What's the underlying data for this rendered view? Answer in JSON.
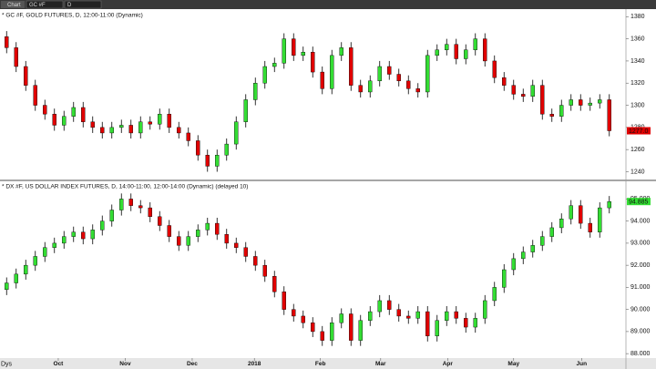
{
  "toolbar": {
    "items": [
      "Chart",
      "GC #F",
      "D"
    ]
  },
  "chart_data": [
    {
      "type": "candlestick",
      "title": "* GC #F, GOLD FUTURES, D, 12:00-11:00 (Dynamic)",
      "up_color": "#33dd33",
      "down_color": "#e00000",
      "ylim": [
        1233,
        1386
      ],
      "yticks": [
        1380,
        1360,
        1340,
        1320,
        1300,
        1280,
        1260,
        1240
      ],
      "last_price_label": "1277.0",
      "open": [
        1362,
        1352,
        1335,
        1318,
        1300,
        1292,
        1282,
        1290,
        1298,
        1285,
        1280,
        1275,
        1280,
        1282,
        1275,
        1285,
        1283,
        1292,
        1280,
        1275,
        1268,
        1255,
        1245,
        1255,
        1265,
        1285,
        1305,
        1320,
        1335,
        1338,
        1360,
        1345,
        1348,
        1330,
        1315,
        1345,
        1352,
        1318,
        1312,
        1322,
        1335,
        1328,
        1322,
        1315,
        1312,
        1345,
        1350,
        1355,
        1342,
        1350,
        1360,
        1340,
        1325,
        1318,
        1310,
        1308,
        1318,
        1292,
        1290,
        1300,
        1305,
        1300,
        1302,
        1305
      ],
      "high": [
        1367,
        1357,
        1340,
        1323,
        1305,
        1297,
        1295,
        1303,
        1303,
        1290,
        1285,
        1285,
        1287,
        1287,
        1290,
        1290,
        1297,
        1297,
        1285,
        1280,
        1273,
        1260,
        1260,
        1270,
        1290,
        1310,
        1325,
        1340,
        1343,
        1365,
        1365,
        1353,
        1353,
        1335,
        1350,
        1357,
        1357,
        1323,
        1327,
        1340,
        1340,
        1333,
        1327,
        1320,
        1350,
        1355,
        1360,
        1360,
        1355,
        1365,
        1365,
        1345,
        1330,
        1323,
        1315,
        1323,
        1323,
        1297,
        1305,
        1310,
        1310,
        1307,
        1310,
        1310
      ],
      "low": [
        1347,
        1330,
        1313,
        1295,
        1287,
        1277,
        1277,
        1285,
        1280,
        1275,
        1270,
        1270,
        1275,
        1270,
        1270,
        1278,
        1278,
        1275,
        1270,
        1263,
        1250,
        1240,
        1240,
        1250,
        1260,
        1280,
        1300,
        1315,
        1330,
        1333,
        1340,
        1340,
        1325,
        1310,
        1310,
        1340,
        1313,
        1307,
        1307,
        1317,
        1323,
        1317,
        1310,
        1307,
        1307,
        1340,
        1345,
        1337,
        1337,
        1345,
        1335,
        1320,
        1313,
        1305,
        1303,
        1303,
        1287,
        1285,
        1285,
        1295,
        1295,
        1295,
        1297,
        1272
      ],
      "close": [
        1352,
        1335,
        1318,
        1300,
        1292,
        1282,
        1290,
        1298,
        1285,
        1280,
        1275,
        1280,
        1282,
        1275,
        1285,
        1283,
        1292,
        1280,
        1275,
        1268,
        1255,
        1245,
        1255,
        1265,
        1285,
        1305,
        1320,
        1335,
        1338,
        1360,
        1345,
        1348,
        1330,
        1315,
        1345,
        1352,
        1318,
        1312,
        1322,
        1335,
        1328,
        1322,
        1315,
        1312,
        1345,
        1350,
        1355,
        1342,
        1350,
        1360,
        1340,
        1325,
        1318,
        1310,
        1308,
        1318,
        1292,
        1290,
        1300,
        1305,
        1300,
        1302,
        1305,
        1277
      ]
    },
    {
      "type": "candlestick",
      "title": "* DX #F, US DOLLAR INDEX FUTURES, D, 14:00-11:00, 12:00-14:00 (Dynamic) (delayed 10)",
      "up_color": "#33dd33",
      "down_color": "#e00000",
      "ylim": [
        87.8,
        95.8
      ],
      "yticks": [
        {
          "value": 95,
          "label": "95.000"
        },
        {
          "value": 94,
          "label": "94.000"
        },
        {
          "value": 93,
          "label": "93.000"
        },
        {
          "value": 92,
          "label": "92.000"
        },
        {
          "value": 91,
          "label": "91.000"
        },
        {
          "value": 90,
          "label": "90.000"
        },
        {
          "value": 89,
          "label": "89.000"
        },
        {
          "value": 88,
          "label": "88.000"
        }
      ],
      "last_price_label": "94.885",
      "xticks": [
        {
          "value": 5.4,
          "label": "Oct"
        },
        {
          "value": 12.4,
          "label": "Nov"
        },
        {
          "value": 19.4,
          "label": "Dec"
        },
        {
          "value": 25.9,
          "label": "2018"
        },
        {
          "value": 32.8,
          "label": "Feb"
        },
        {
          "value": 39.1,
          "label": "Mar"
        },
        {
          "value": 46.1,
          "label": "Apr"
        },
        {
          "value": 53,
          "label": "May"
        },
        {
          "value": 60.1,
          "label": "Jun"
        }
      ],
      "x_axis_unit": "Dys",
      "open": [
        90.9,
        91.2,
        91.6,
        92.0,
        92.4,
        92.8,
        93.0,
        93.3,
        93.5,
        93.2,
        93.6,
        94.0,
        94.5,
        95.0,
        94.7,
        94.6,
        94.2,
        93.8,
        93.3,
        92.9,
        93.3,
        93.6,
        93.9,
        93.4,
        93.0,
        92.8,
        92.4,
        92.0,
        91.5,
        90.8,
        90.0,
        89.7,
        89.4,
        89.0,
        88.6,
        89.4,
        89.8,
        88.6,
        89.5,
        89.9,
        90.4,
        90.0,
        89.7,
        89.6,
        89.9,
        88.8,
        89.5,
        89.9,
        89.6,
        89.2,
        89.6,
        90.4,
        91.0,
        91.8,
        92.3,
        92.6,
        92.9,
        93.3,
        93.7,
        94.1,
        94.7,
        93.9,
        93.5,
        94.6
      ],
      "high": [
        91.45,
        91.85,
        92.25,
        92.65,
        93.05,
        93.25,
        93.55,
        93.75,
        93.75,
        93.85,
        94.25,
        94.75,
        95.25,
        95.25,
        94.95,
        94.85,
        94.45,
        94.05,
        93.55,
        93.55,
        93.85,
        94.15,
        94.15,
        93.65,
        93.25,
        93.05,
        92.65,
        92.25,
        91.75,
        91.05,
        90.25,
        89.95,
        89.65,
        89.25,
        89.65,
        90.05,
        90.05,
        89.75,
        90.15,
        90.65,
        90.65,
        90.25,
        89.95,
        90.15,
        90.15,
        89.75,
        90.15,
        90.15,
        89.85,
        89.85,
        90.65,
        91.25,
        92.05,
        92.55,
        92.85,
        93.15,
        93.55,
        93.95,
        94.35,
        94.95,
        94.95,
        94.15,
        94.85,
        95.135
      ],
      "low": [
        90.65,
        90.95,
        91.35,
        91.75,
        92.15,
        92.55,
        92.75,
        93.05,
        92.95,
        92.95,
        93.35,
        93.75,
        94.25,
        94.45,
        94.35,
        93.95,
        93.55,
        93.05,
        92.65,
        92.65,
        93.05,
        93.35,
        93.15,
        92.75,
        92.55,
        92.15,
        91.75,
        91.25,
        90.55,
        89.75,
        89.45,
        89.15,
        88.75,
        88.35,
        88.35,
        89.15,
        88.35,
        88.35,
        89.25,
        89.65,
        89.75,
        89.45,
        89.35,
        89.35,
        88.55,
        88.55,
        89.25,
        89.35,
        88.95,
        88.95,
        89.35,
        90.15,
        90.75,
        91.55,
        92.05,
        92.35,
        92.65,
        93.05,
        93.45,
        93.85,
        93.65,
        93.25,
        93.25,
        94.35
      ],
      "close": [
        91.2,
        91.6,
        92.0,
        92.4,
        92.8,
        93.0,
        93.3,
        93.5,
        93.2,
        93.6,
        94.0,
        94.5,
        95.0,
        94.7,
        94.6,
        94.2,
        93.8,
        93.3,
        92.9,
        93.3,
        93.6,
        93.9,
        93.4,
        93.0,
        92.8,
        92.4,
        92.0,
        91.5,
        90.8,
        90.0,
        89.7,
        89.4,
        89.0,
        88.6,
        89.4,
        89.8,
        88.6,
        89.5,
        89.9,
        90.4,
        90.0,
        89.7,
        89.6,
        89.9,
        88.8,
        89.5,
        89.9,
        89.6,
        89.2,
        89.6,
        90.4,
        91.0,
        91.8,
        92.3,
        92.6,
        92.9,
        93.3,
        93.7,
        94.1,
        94.7,
        93.9,
        93.5,
        94.6,
        94.885
      ]
    }
  ]
}
